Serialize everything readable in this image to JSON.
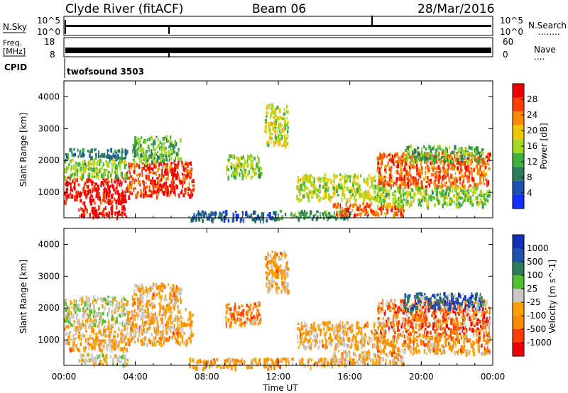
{
  "header": {
    "station": "Clyde River (fitACF)",
    "beam": "Beam 06",
    "date": "28/Mar/2016"
  },
  "status_panels": {
    "nsky_label": "N.Sky",
    "nsky_ticks": [
      "10^5",
      "10^0"
    ],
    "nsearch_label": "N.Search",
    "nsearch_ticks": [
      "10^5",
      "10^0"
    ],
    "freq_label": "Freq.",
    "freq_unit": "[MHz]",
    "freq_ticks": [
      "18",
      "8"
    ],
    "nave_label": "Nave",
    "nave_ticks": [
      "60",
      "0"
    ],
    "cpid_label": "CPID",
    "cpid_value": "twofsound 3503",
    "dotted_marker": "........",
    "short_dotted_marker": "...."
  },
  "colors": {
    "scale": [
      "#1030ff",
      "#2050b0",
      "#2e7a5a",
      "#40b040",
      "#a8d820",
      "#f0c800",
      "#ff8c00",
      "#ff4000",
      "#ee0000"
    ],
    "velocity_scale": [
      "#ee0000",
      "#ff4000",
      "#ff8c00",
      "#ffa200",
      "#c8c8c8",
      "#50c030",
      "#2e7a5a",
      "#2050b0",
      "#1030b8"
    ],
    "gray": "#c8c8c8"
  },
  "chart_data": [
    {
      "type": "heatmap",
      "name": "power",
      "ylabel": "Slant Range [km]",
      "ylim": [
        200,
        4500
      ],
      "y_ticks": [
        "4000",
        "3000",
        "2000",
        "1000"
      ],
      "xlim": [
        0,
        24
      ],
      "x_ticks": [
        "00:00",
        "04:00",
        "08:00",
        "12:00",
        "16:00",
        "20:00",
        "00:00"
      ],
      "colorbar": {
        "label": "Power [dB]",
        "ticks": [
          "28",
          "24",
          "20",
          "16",
          "12",
          "8",
          "4"
        ],
        "range": [
          0,
          30
        ]
      },
      "regions": [
        {
          "t": [
            0.0,
            3.5
          ],
          "r": [
            700,
            1500
          ],
          "value": 28
        },
        {
          "t": [
            0.0,
            3.5
          ],
          "r": [
            1500,
            2100
          ],
          "value": 14
        },
        {
          "t": [
            0.0,
            3.5
          ],
          "r": [
            2100,
            2400
          ],
          "value": 8
        },
        {
          "t": [
            0.8,
            3.5
          ],
          "r": [
            250,
            600
          ],
          "value": 28
        },
        {
          "t": [
            3.5,
            7.2
          ],
          "r": [
            900,
            2000
          ],
          "value": 26
        },
        {
          "t": [
            3.8,
            6.5
          ],
          "r": [
            2000,
            2800
          ],
          "value": 12
        },
        {
          "t": [
            7.0,
            12.0
          ],
          "r": [
            150,
            450
          ],
          "value": 6
        },
        {
          "t": [
            12.0,
            16.0
          ],
          "r": [
            200,
            450
          ],
          "value": 10
        },
        {
          "t": [
            13.0,
            18.0
          ],
          "r": [
            800,
            1600
          ],
          "value": 16
        },
        {
          "t": [
            15.0,
            19.0
          ],
          "r": [
            300,
            700
          ],
          "value": 24
        },
        {
          "t": [
            17.5,
            23.8
          ],
          "r": [
            1200,
            2300
          ],
          "value": 24
        },
        {
          "t": [
            17.5,
            23.8
          ],
          "r": [
            600,
            1200
          ],
          "value": 14
        },
        {
          "t": [
            19.0,
            23.5
          ],
          "r": [
            2000,
            2500
          ],
          "value": 12
        },
        {
          "t": [
            11.2,
            12.5
          ],
          "r": [
            2500,
            3800
          ],
          "value": 16
        },
        {
          "t": [
            9.0,
            11.0
          ],
          "r": [
            1500,
            2200
          ],
          "value": 14
        }
      ]
    },
    {
      "type": "heatmap",
      "name": "velocity",
      "ylabel": "Slant Range [km]",
      "ylim": [
        200,
        4500
      ],
      "y_ticks": [
        "4000",
        "3000",
        "2000",
        "1000"
      ],
      "xlim": [
        0,
        24
      ],
      "x_ticks": [
        "00:00",
        "04:00",
        "08:00",
        "12:00",
        "16:00",
        "20:00",
        "00:00"
      ],
      "xlabel": "Time UT",
      "colorbar": {
        "label": "Velocity [m s^-1]",
        "ticks": [
          "1000",
          "500",
          "100",
          "25",
          "-25",
          "-100",
          "-500",
          "-1000"
        ],
        "range": [
          -1000,
          1000
        ]
      },
      "regions": [
        {
          "t": [
            0.0,
            3.5
          ],
          "r": [
            700,
            1500
          ],
          "value": -300
        },
        {
          "t": [
            0.0,
            3.5
          ],
          "r": [
            1500,
            2100
          ],
          "value": 0
        },
        {
          "t": [
            0.0,
            3.5
          ],
          "r": [
            2100,
            2400
          ],
          "value": 0
        },
        {
          "t": [
            0.8,
            3.5
          ],
          "r": [
            250,
            600
          ],
          "value": 0
        },
        {
          "t": [
            3.5,
            7.2
          ],
          "r": [
            900,
            2000
          ],
          "value": -300
        },
        {
          "t": [
            3.8,
            6.5
          ],
          "r": [
            2000,
            2800
          ],
          "value": -300
        },
        {
          "t": [
            7.0,
            12.0
          ],
          "r": [
            150,
            450
          ],
          "value": -300
        },
        {
          "t": [
            12.0,
            16.0
          ],
          "r": [
            200,
            450
          ],
          "value": -300
        },
        {
          "t": [
            13.0,
            18.0
          ],
          "r": [
            800,
            1600
          ],
          "value": -300
        },
        {
          "t": [
            15.0,
            19.0
          ],
          "r": [
            300,
            700
          ],
          "value": -200
        },
        {
          "t": [
            17.5,
            23.8
          ],
          "r": [
            1200,
            2300
          ],
          "value": -600
        },
        {
          "t": [
            17.5,
            23.8
          ],
          "r": [
            600,
            1200
          ],
          "value": -400
        },
        {
          "t": [
            19.0,
            23.5
          ],
          "r": [
            2000,
            2500
          ],
          "value": 600
        },
        {
          "t": [
            11.2,
            12.5
          ],
          "r": [
            2500,
            3800
          ],
          "value": -300
        },
        {
          "t": [
            9.0,
            11.0
          ],
          "r": [
            1500,
            2200
          ],
          "value": -500
        }
      ]
    }
  ]
}
